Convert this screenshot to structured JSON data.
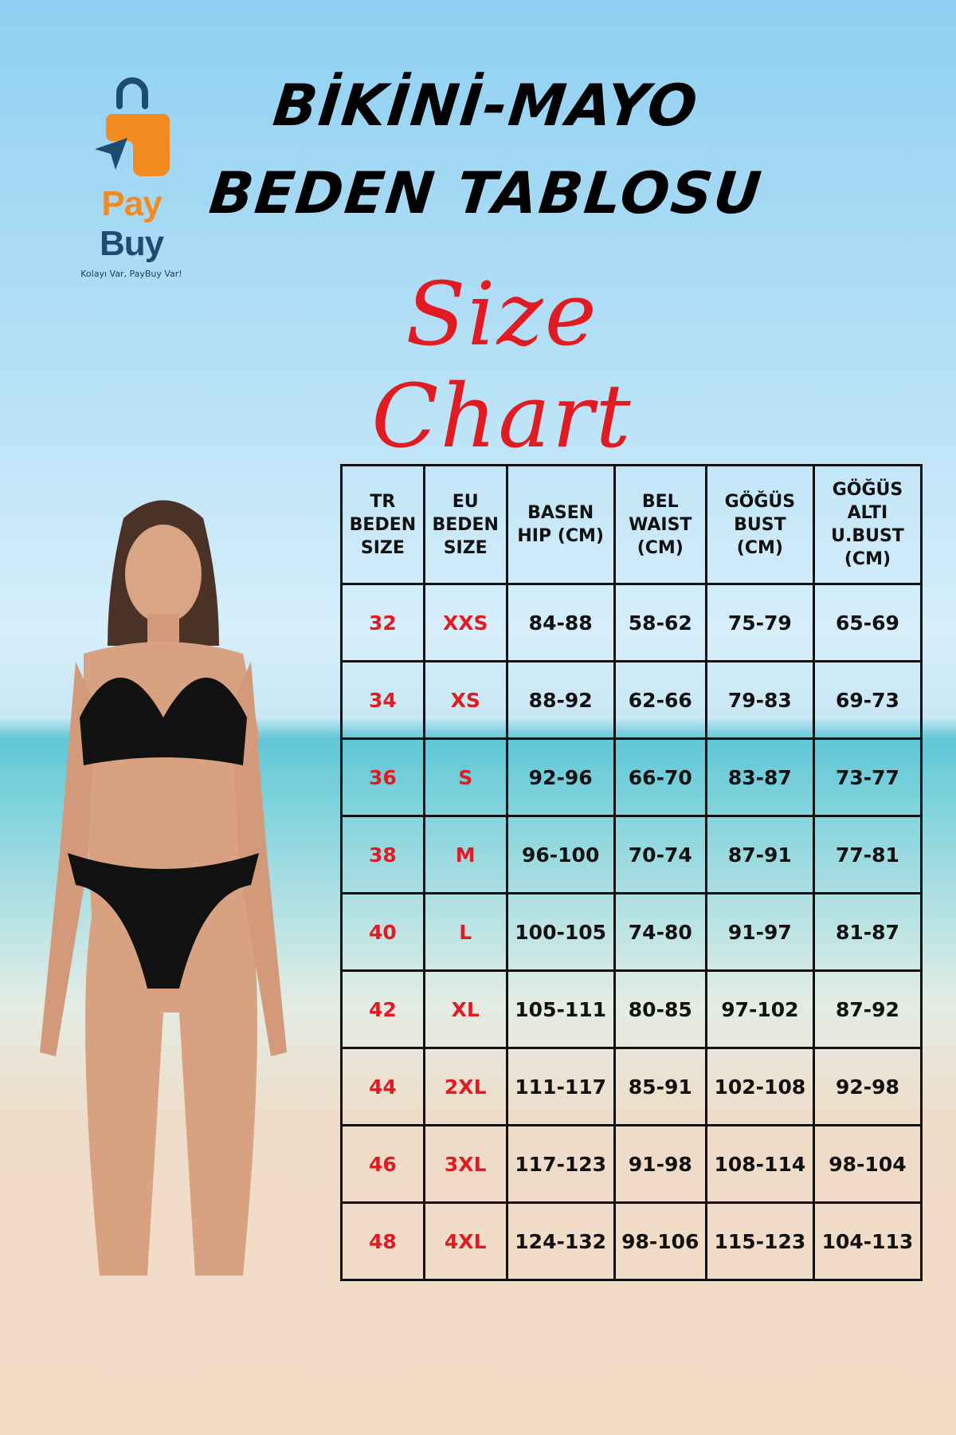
{
  "logo": {
    "brand_part1": "Pay",
    "brand_part2": "Buy",
    "tagline": "Kolayı Var, PayBuy Var!",
    "colors": {
      "orange": "#f28a20",
      "navy": "#1d4c72"
    }
  },
  "title": {
    "line1": "BİKİNİ-MAYO",
    "line2": "BEDEN TABLOSU",
    "script": "Size Chart",
    "script_color": "#e21b23"
  },
  "table": {
    "headers": [
      "TR\nBEDEN\nSIZE",
      "EU\nBEDEN\nSIZE",
      "BASEN\nHIP (CM)",
      "BEL\nWAIST\n(CM)",
      "GÖĞÜS\nBUST\n(CM)",
      "GÖĞÜS\nALTI\nU.BUST\n(CM)"
    ],
    "rows": [
      [
        "32",
        "XXS",
        "84-88",
        "58-62",
        "75-79",
        "65-69"
      ],
      [
        "34",
        "XS",
        "88-92",
        "62-66",
        "79-83",
        "69-73"
      ],
      [
        "36",
        "S",
        "92-96",
        "66-70",
        "83-87",
        "73-77"
      ],
      [
        "38",
        "M",
        "96-100",
        "70-74",
        "87-91",
        "77-81"
      ],
      [
        "40",
        "L",
        "100-105",
        "74-80",
        "91-97",
        "81-87"
      ],
      [
        "42",
        "XL",
        "105-111",
        "80-85",
        "97-102",
        "87-92"
      ],
      [
        "44",
        "2XL",
        "111-117",
        "85-91",
        "102-108",
        "92-98"
      ],
      [
        "46",
        "3XL",
        "117-123",
        "91-98",
        "108-114",
        "98-104"
      ],
      [
        "48",
        "4XL",
        "124-132",
        "98-106",
        "115-123",
        "104-113"
      ]
    ]
  }
}
